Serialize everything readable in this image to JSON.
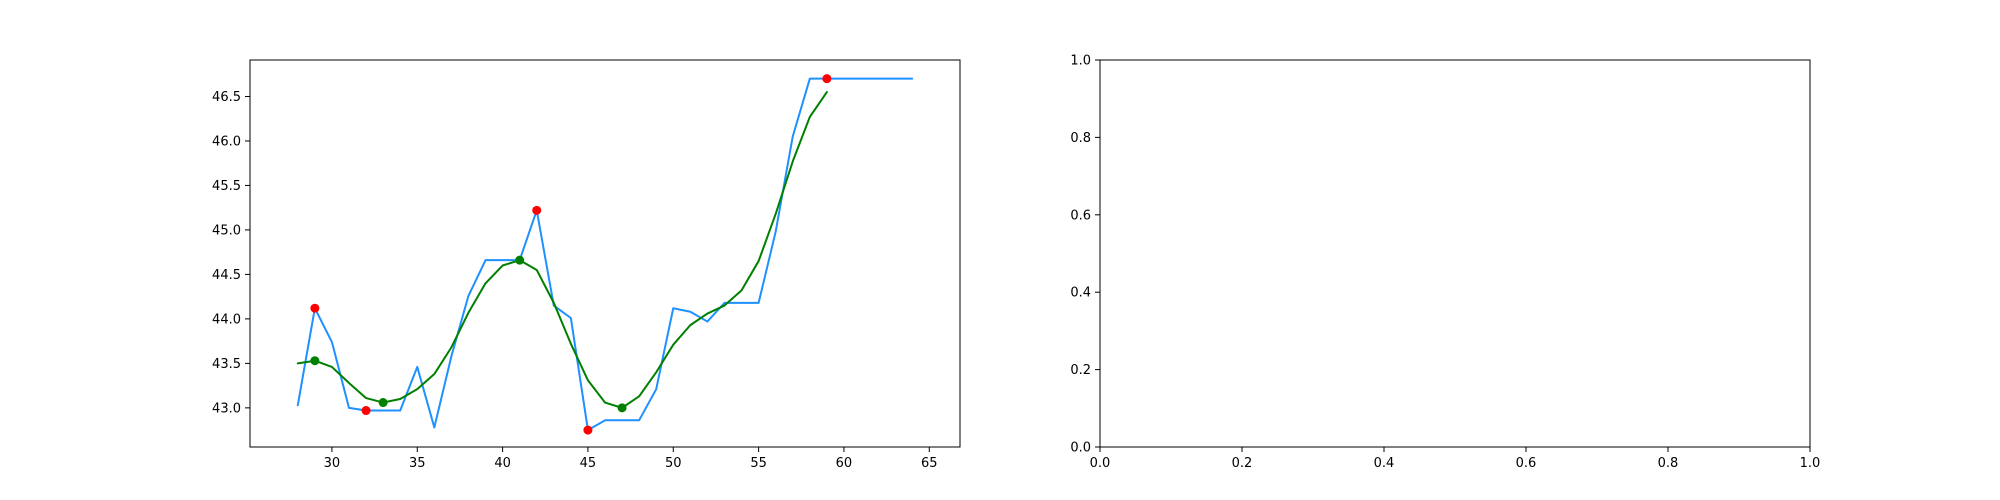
{
  "colors": {
    "raw_line": "#1e90ff",
    "smooth_line": "#008000",
    "raw_extrema": "#ff0000",
    "smooth_extrema": "#008000",
    "frame": "#000000"
  },
  "chart_data": [
    {
      "type": "line",
      "title": "",
      "xlabel": "",
      "ylabel": "",
      "xlim": [
        25.2,
        66.8
      ],
      "ylim": [
        42.56,
        46.91
      ],
      "xticks": [
        30,
        35,
        40,
        45,
        50,
        55,
        60,
        65
      ],
      "yticks": [
        43.0,
        43.5,
        44.0,
        44.5,
        45.0,
        45.5,
        46.0,
        46.5
      ],
      "grid": false,
      "series": [
        {
          "style": "line",
          "color": "#1e90ff",
          "x": [
            28,
            29,
            30,
            31,
            32,
            33,
            34,
            35,
            36,
            37,
            38,
            39,
            40,
            41,
            42,
            43,
            44,
            45,
            46,
            47,
            48,
            49,
            50,
            51,
            52,
            53,
            54,
            55,
            56,
            57,
            58,
            59,
            60,
            61,
            62,
            63,
            64
          ],
          "y": [
            43.03,
            44.12,
            43.74,
            43.0,
            42.97,
            42.97,
            42.97,
            43.46,
            42.78,
            43.58,
            44.26,
            44.66,
            44.66,
            44.66,
            45.22,
            44.15,
            44.01,
            42.75,
            42.86,
            42.86,
            42.86,
            43.21,
            44.12,
            44.08,
            43.97,
            44.18,
            44.18,
            44.18,
            44.98,
            46.05,
            46.7,
            46.7,
            46.7,
            46.7,
            46.7,
            46.7,
            46.7
          ]
        },
        {
          "style": "line",
          "color": "#008000",
          "x": [
            28,
            29,
            30,
            31,
            32,
            33,
            34,
            35,
            36,
            37,
            38,
            39,
            40,
            41,
            42,
            43,
            44,
            45,
            46,
            47,
            48,
            49,
            50,
            51,
            52,
            53,
            54,
            55,
            56,
            57,
            58,
            59
          ],
          "y": [
            43.5,
            43.53,
            43.46,
            43.28,
            43.11,
            43.06,
            43.1,
            43.21,
            43.38,
            43.68,
            44.07,
            44.4,
            44.6,
            44.66,
            44.55,
            44.18,
            43.72,
            43.31,
            43.06,
            43.0,
            43.13,
            43.4,
            43.71,
            43.93,
            44.06,
            44.15,
            44.32,
            44.65,
            45.18,
            45.77,
            46.27,
            46.55
          ]
        },
        {
          "style": "scatter",
          "color": "#ff0000",
          "x": [
            29,
            32,
            42,
            45,
            59
          ],
          "y": [
            44.12,
            42.97,
            45.22,
            42.75,
            46.7
          ]
        },
        {
          "style": "scatter",
          "color": "#008000",
          "x": [
            29,
            33,
            41,
            47
          ],
          "y": [
            43.53,
            43.06,
            44.66,
            43.0
          ]
        }
      ]
    },
    {
      "type": "line",
      "title": "",
      "xlabel": "",
      "ylabel": "",
      "xlim": [
        0,
        1
      ],
      "ylim": [
        0,
        1
      ],
      "xticks": [
        0.0,
        0.2,
        0.4,
        0.6,
        0.8,
        1.0
      ],
      "yticks": [
        0.0,
        0.2,
        0.4,
        0.6,
        0.8,
        1.0
      ],
      "grid": false,
      "series": []
    }
  ]
}
